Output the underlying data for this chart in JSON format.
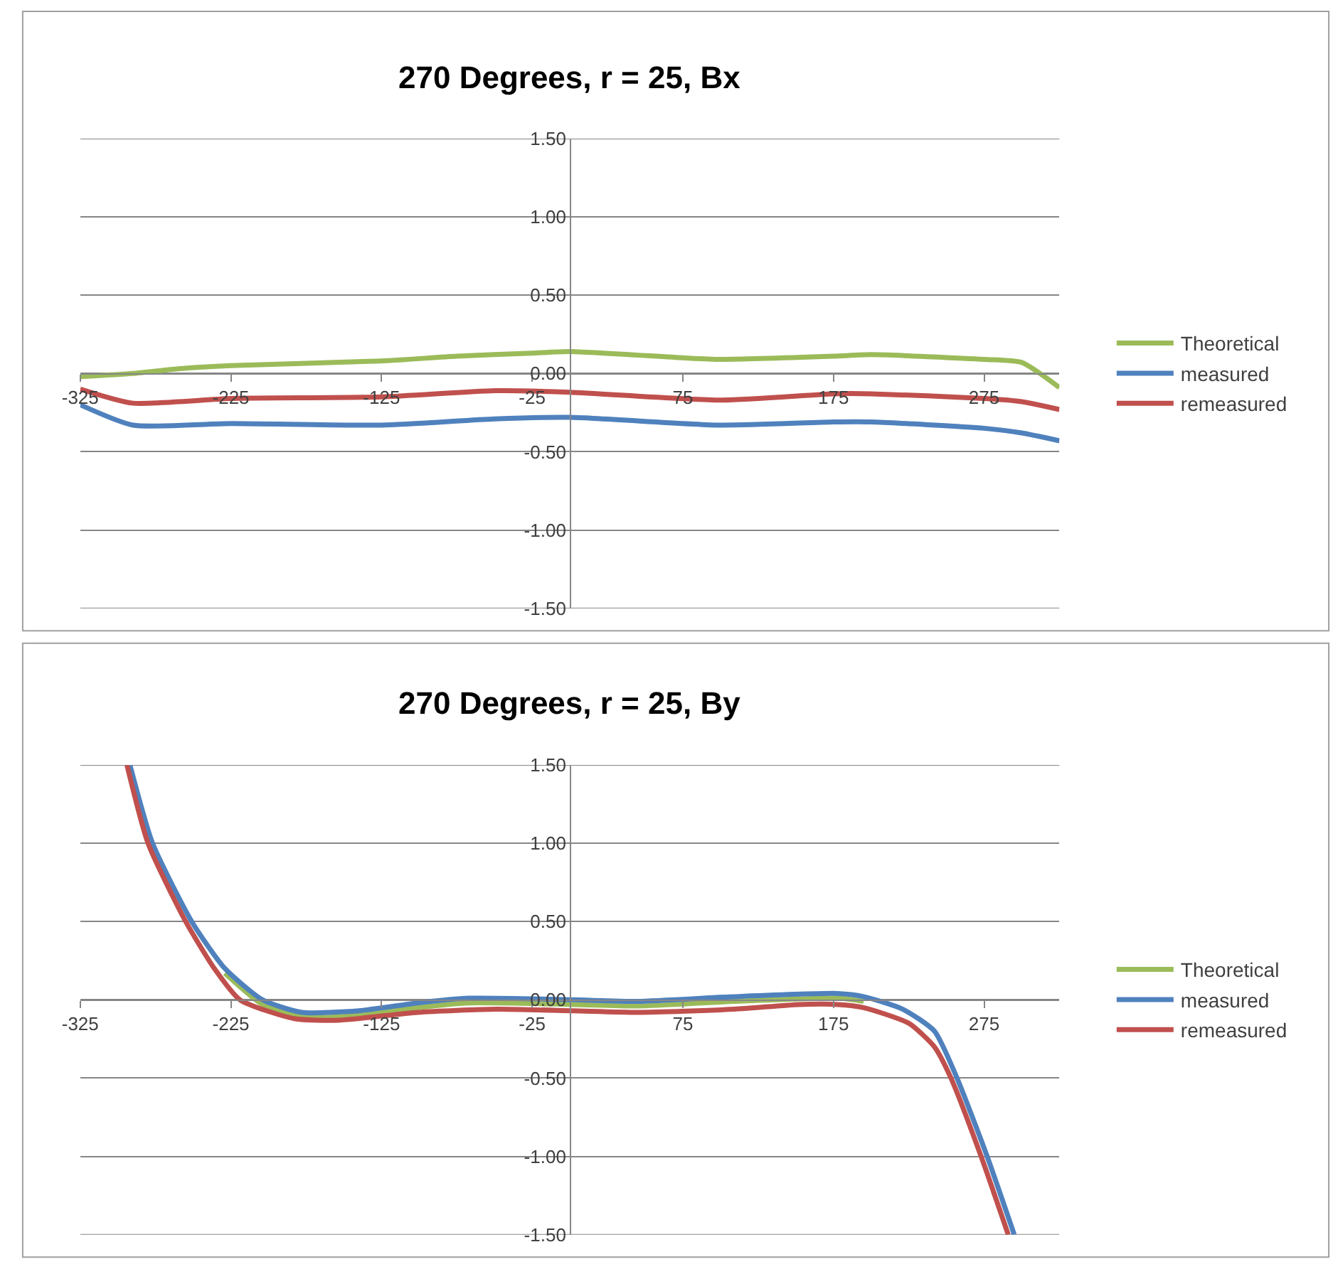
{
  "chart_data": [
    {
      "type": "line",
      "title": "270 Degrees, r = 25, Bx",
      "xlim": [
        -325,
        325
      ],
      "xticks": [
        -325,
        -225,
        -125,
        -25,
        75,
        175,
        275
      ],
      "ylim": [
        -1.5,
        1.5
      ],
      "yticks": [
        {
          "value": 1.5,
          "label": "1.50"
        },
        {
          "value": 1.0,
          "label": "1.00"
        },
        {
          "value": 0.5,
          "label": "0.50"
        },
        {
          "value": 0,
          "label": "0.00"
        },
        {
          "value": -0.5,
          "label": "-0.50"
        },
        {
          "value": -1.0,
          "label": "-1.00"
        },
        {
          "value": -1.5,
          "label": "-1.50"
        }
      ],
      "grid": "y",
      "legend": "right",
      "series": [
        {
          "name": "Theoretical",
          "color": "#9bbb59",
          "x": [
            -325,
            -290,
            -260,
            -225,
            -125,
            -75,
            -25,
            0,
            75,
            100,
            175,
            200,
            275,
            300,
            325
          ],
          "values": [
            -0.02,
            0.0,
            0.03,
            0.05,
            0.08,
            0.11,
            0.13,
            0.14,
            0.1,
            0.09,
            0.11,
            0.12,
            0.09,
            0.07,
            -0.09
          ]
        },
        {
          "name": "measured",
          "color": "#4f81bd",
          "x": [
            -325,
            -290,
            -225,
            -125,
            -50,
            0,
            100,
            175,
            200,
            275,
            300,
            325
          ],
          "values": [
            -0.2,
            -0.33,
            -0.32,
            -0.33,
            -0.29,
            -0.28,
            -0.33,
            -0.31,
            -0.31,
            -0.35,
            -0.38,
            -0.43
          ]
        },
        {
          "name": "remeasured",
          "color": "#c0504d",
          "x": [
            -325,
            -290,
            -225,
            -125,
            -50,
            0,
            100,
            175,
            200,
            275,
            300,
            325
          ],
          "values": [
            -0.1,
            -0.19,
            -0.16,
            -0.15,
            -0.11,
            -0.12,
            -0.17,
            -0.13,
            -0.13,
            -0.16,
            -0.18,
            -0.23
          ]
        }
      ]
    },
    {
      "type": "line",
      "title": "270 Degrees, r = 25, By",
      "xlim": [
        -325,
        325
      ],
      "xticks": [
        -325,
        -225,
        -125,
        -25,
        75,
        175,
        275
      ],
      "ylim": [
        -1.5,
        1.5
      ],
      "yticks": [
        {
          "value": 1.5,
          "label": "1.50"
        },
        {
          "value": 1.0,
          "label": "1.00"
        },
        {
          "value": 0.5,
          "label": "0.50"
        },
        {
          "value": 0,
          "label": "0.00"
        },
        {
          "value": -0.5,
          "label": "-0.50"
        },
        {
          "value": -1.0,
          "label": "-1.00"
        },
        {
          "value": -1.5,
          "label": "-1.50"
        }
      ],
      "grid": "y",
      "legend": "right",
      "series": [
        {
          "name": "Theoretical",
          "color": "#9bbb59",
          "x": [
            -229,
            -204,
            -178,
            -140,
            -101,
            -67,
            2,
            45,
            109,
            178,
            195
          ],
          "values": [
            0.17,
            -0.03,
            -0.11,
            -0.1,
            -0.05,
            -0.02,
            -0.03,
            -0.04,
            -0.01,
            0.01,
            -0.01
          ]
        },
        {
          "name": "measured",
          "color": "#4f81bd",
          "x": [
            -292,
            -277,
            -251,
            -229,
            -204,
            -178,
            -140,
            -101,
            -67,
            2,
            45,
            109,
            178,
            195,
            221,
            242,
            257,
            277,
            295
          ],
          "values": [
            1.5,
            1.0,
            0.5,
            0.2,
            0.0,
            -0.08,
            -0.07,
            -0.02,
            0.01,
            0.0,
            -0.01,
            0.02,
            0.04,
            0.02,
            -0.06,
            -0.2,
            -0.5,
            -1.0,
            -1.5
          ]
        },
        {
          "name": "remeasured",
          "color": "#c0504d",
          "x": [
            -294,
            -280,
            -255,
            -236,
            -219,
            -183,
            -153,
            -101,
            -49,
            2,
            45,
            109,
            152,
            178,
            195,
            225,
            242,
            253,
            273,
            291
          ],
          "values": [
            1.5,
            1.0,
            0.5,
            0.2,
            0.0,
            -0.12,
            -0.13,
            -0.08,
            -0.06,
            -0.07,
            -0.08,
            -0.06,
            -0.03,
            -0.03,
            -0.05,
            -0.15,
            -0.3,
            -0.5,
            -1.0,
            -1.5
          ]
        }
      ]
    }
  ]
}
